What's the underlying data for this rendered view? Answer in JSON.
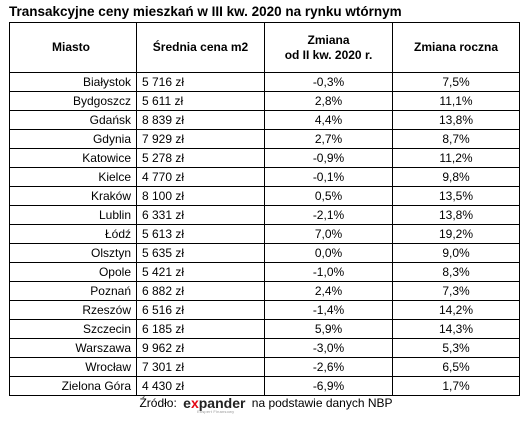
{
  "title": "Transakcyjne ceny mieszkań w III kw. 2020 na rynku wtórnym",
  "table": {
    "headers": {
      "city": "Miasto",
      "avg_price": "Średnia cena m2",
      "change_q_line1": "Zmiana",
      "change_q_line2": "od II kw. 2020 r.",
      "change_y": "Zmiana roczna"
    },
    "rows": [
      {
        "city": "Białystok",
        "price": "5 716 zł",
        "change_q": "-0,3%",
        "change_y": "7,5%"
      },
      {
        "city": "Bydgoszcz",
        "price": "5 611 zł",
        "change_q": "2,8%",
        "change_y": "11,1%"
      },
      {
        "city": "Gdańsk",
        "price": "8 839 zł",
        "change_q": "4,4%",
        "change_y": "13,8%"
      },
      {
        "city": "Gdynia",
        "price": "7 929 zł",
        "change_q": "2,7%",
        "change_y": "8,7%"
      },
      {
        "city": "Katowice",
        "price": "5 278 zł",
        "change_q": "-0,9%",
        "change_y": "11,2%"
      },
      {
        "city": "Kielce",
        "price": "4 770 zł",
        "change_q": "-0,1%",
        "change_y": "9,8%"
      },
      {
        "city": "Kraków",
        "price": "8 100 zł",
        "change_q": "0,5%",
        "change_y": "13,5%"
      },
      {
        "city": "Lublin",
        "price": "6 331 zł",
        "change_q": "-2,1%",
        "change_y": "13,8%"
      },
      {
        "city": "Łódź",
        "price": "5 613 zł",
        "change_q": "7,0%",
        "change_y": "19,2%"
      },
      {
        "city": "Olsztyn",
        "price": "5 635 zł",
        "change_q": "0,0%",
        "change_y": "9,0%"
      },
      {
        "city": "Opole",
        "price": "5 421 zł",
        "change_q": "-1,0%",
        "change_y": "8,3%"
      },
      {
        "city": "Poznań",
        "price": "6 882 zł",
        "change_q": "2,4%",
        "change_y": "7,3%"
      },
      {
        "city": "Rzeszów",
        "price": "6 516 zł",
        "change_q": "-1,4%",
        "change_y": "14,2%"
      },
      {
        "city": "Szczecin",
        "price": "6 185 zł",
        "change_q": "5,9%",
        "change_y": "14,3%"
      },
      {
        "city": "Warszawa",
        "price": "9 962 zł",
        "change_q": "-3,0%",
        "change_y": "5,3%"
      },
      {
        "city": "Wrocław",
        "price": "7 301 zł",
        "change_q": "-2,6%",
        "change_y": "6,5%"
      },
      {
        "city": "Zielona Góra",
        "price": "4 430 zł",
        "change_q": "-6,9%",
        "change_y": "1,7%"
      }
    ]
  },
  "source": {
    "prefix": "Źródło:",
    "logo_e": "e",
    "logo_x": "x",
    "logo_rest": "pander",
    "logo_tagline": "Ekspert Finansowy",
    "suffix": "na podstawie danych NBP"
  },
  "colors": {
    "logo_x": "#e30613",
    "text": "#000000"
  }
}
